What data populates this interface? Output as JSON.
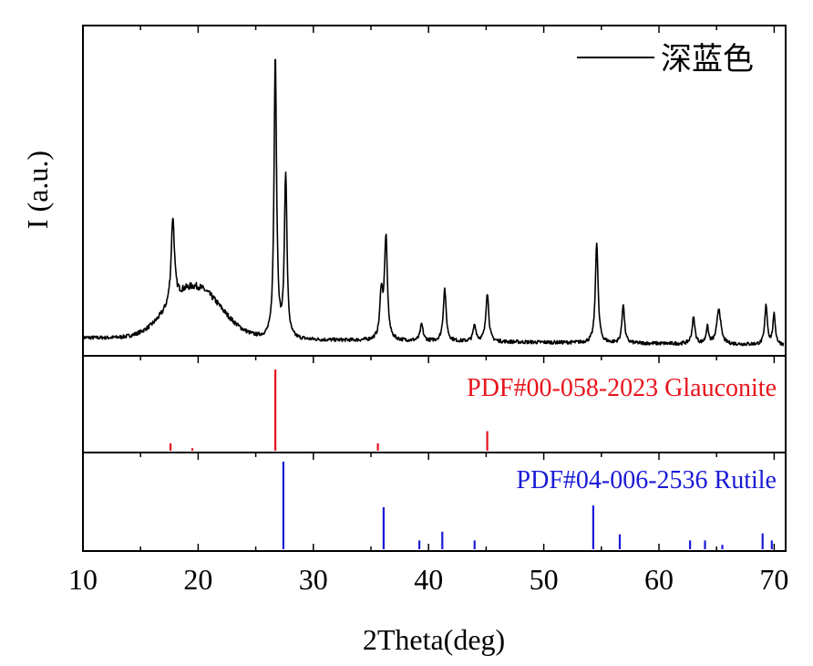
{
  "chart_data": {
    "type": "line",
    "xlabel": "2Theta(deg)",
    "ylabel": "I (a.u.)",
    "xlim": [
      10,
      71
    ],
    "x_ticks": [
      10,
      20,
      30,
      40,
      50,
      60,
      70
    ],
    "grid": false,
    "legend_position": "top-right",
    "colors": {
      "sample": "#000000",
      "glauconite": "#e8141c",
      "rutile": "#1a1ad6",
      "axis": "#000000"
    },
    "sample": {
      "name": "深蓝色",
      "ylim": [
        0,
        100
      ],
      "baseline": 5,
      "hump": {
        "center": 19.7,
        "width": 3.2,
        "height": 16
      },
      "peaks": [
        {
          "x": 17.8,
          "h": 26,
          "w": 0.17
        },
        {
          "x": 26.7,
          "h": 87,
          "w": 0.13
        },
        {
          "x": 27.6,
          "h": 50,
          "w": 0.13
        },
        {
          "x": 35.9,
          "h": 14,
          "w": 0.15
        },
        {
          "x": 36.3,
          "h": 31,
          "w": 0.15
        },
        {
          "x": 39.4,
          "h": 5,
          "w": 0.15
        },
        {
          "x": 41.4,
          "h": 16,
          "w": 0.15
        },
        {
          "x": 44.0,
          "h": 5,
          "w": 0.15
        },
        {
          "x": 45.1,
          "h": 15,
          "w": 0.15
        },
        {
          "x": 54.6,
          "h": 31,
          "w": 0.14
        },
        {
          "x": 56.9,
          "h": 12,
          "w": 0.13
        },
        {
          "x": 63.0,
          "h": 8,
          "w": 0.15
        },
        {
          "x": 64.2,
          "h": 5,
          "w": 0.13
        },
        {
          "x": 65.2,
          "h": 11,
          "w": 0.2
        },
        {
          "x": 69.3,
          "h": 12,
          "w": 0.13
        },
        {
          "x": 70.0,
          "h": 9,
          "w": 0.13
        }
      ]
    },
    "references": [
      {
        "name": "PDF#00-058-2023 Glauconite",
        "ylim": [
          0,
          100
        ],
        "lines": [
          {
            "x": 17.6,
            "y": 9
          },
          {
            "x": 19.5,
            "y": 3
          },
          {
            "x": 26.7,
            "y": 100
          },
          {
            "x": 35.6,
            "y": 9
          },
          {
            "x": 45.1,
            "y": 24
          }
        ]
      },
      {
        "name": "PDF#04-006-2536 Rutile",
        "ylim": [
          0,
          100
        ],
        "lines": [
          {
            "x": 27.4,
            "y": 100
          },
          {
            "x": 36.1,
            "y": 48
          },
          {
            "x": 39.2,
            "y": 10
          },
          {
            "x": 41.2,
            "y": 20
          },
          {
            "x": 44.0,
            "y": 10
          },
          {
            "x": 54.3,
            "y": 50
          },
          {
            "x": 56.6,
            "y": 17
          },
          {
            "x": 62.7,
            "y": 10
          },
          {
            "x": 64.0,
            "y": 10
          },
          {
            "x": 65.5,
            "y": 5
          },
          {
            "x": 69.0,
            "y": 18
          },
          {
            "x": 69.8,
            "y": 10
          }
        ]
      }
    ]
  }
}
